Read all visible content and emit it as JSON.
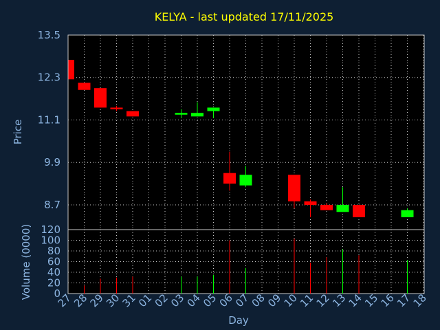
{
  "chart_data": {
    "type": "candlestick",
    "title": "KELYA - last updated 17/11/2025",
    "price_panel": {
      "ylabel": "Price",
      "ylim": [
        8.0,
        13.5
      ],
      "yticks": [
        "13.5",
        "12.3",
        "11.1",
        "9.9",
        "8.7"
      ],
      "ytick_values": [
        13.5,
        12.3,
        11.1,
        9.9,
        8.7
      ]
    },
    "volume_panel": {
      "ylabel": "Volume (0000)",
      "ylim": [
        0,
        120
      ],
      "yticks": [
        "120",
        "100",
        "80",
        "60",
        "40",
        "20",
        "0"
      ],
      "ytick_values": [
        120,
        100,
        80,
        60,
        40,
        20,
        0
      ]
    },
    "xlabel": "Day",
    "xticks": [
      "27",
      "28",
      "29",
      "30",
      "31",
      "01",
      "02",
      "03",
      "04",
      "05",
      "06",
      "07",
      "08",
      "09",
      "10",
      "11",
      "12",
      "13",
      "14",
      "15",
      "16",
      "17",
      "18"
    ],
    "colors": {
      "up": "#00ff00",
      "down": "#ff0000"
    },
    "candles": [
      {
        "i": 0,
        "open": 12.8,
        "high": 12.8,
        "low": 12.25,
        "close": 12.25,
        "volume": 0
      },
      {
        "i": 1,
        "open": 12.15,
        "high": 12.15,
        "low": 11.95,
        "close": 11.95,
        "volume": 15
      },
      {
        "i": 2,
        "open": 12.0,
        "high": 12.0,
        "low": 11.45,
        "close": 11.45,
        "volume": 28
      },
      {
        "i": 3,
        "open": 11.45,
        "high": 11.5,
        "low": 11.35,
        "close": 11.4,
        "volume": 30
      },
      {
        "i": 4,
        "open": 11.35,
        "high": 11.35,
        "low": 11.2,
        "close": 11.2,
        "volume": 32
      },
      {
        "i": 7,
        "open": 11.25,
        "high": 11.4,
        "low": 11.15,
        "close": 11.3,
        "volume": 32
      },
      {
        "i": 8,
        "open": 11.2,
        "high": 11.6,
        "low": 11.2,
        "close": 11.3,
        "volume": 32
      },
      {
        "i": 9,
        "open": 11.35,
        "high": 11.45,
        "low": 11.15,
        "close": 11.45,
        "volume": 35
      },
      {
        "i": 10,
        "open": 9.6,
        "high": 10.2,
        "low": 9.1,
        "close": 9.3,
        "volume": 100
      },
      {
        "i": 11,
        "open": 9.25,
        "high": 9.8,
        "low": 9.2,
        "close": 9.55,
        "volume": 48
      },
      {
        "i": 14,
        "open": 9.55,
        "high": 9.55,
        "low": 8.6,
        "close": 8.8,
        "volume": 103
      },
      {
        "i": 15,
        "open": 8.8,
        "high": 8.85,
        "low": 8.35,
        "close": 8.7,
        "volume": 58
      },
      {
        "i": 16,
        "open": 8.7,
        "high": 8.75,
        "low": 8.55,
        "close": 8.55,
        "volume": 68
      },
      {
        "i": 17,
        "open": 8.5,
        "high": 9.2,
        "low": 8.5,
        "close": 8.7,
        "volume": 83
      },
      {
        "i": 18,
        "open": 8.7,
        "high": 8.7,
        "low": 8.35,
        "close": 8.35,
        "volume": 72
      },
      {
        "i": 21,
        "open": 8.35,
        "high": 8.6,
        "low": 8.35,
        "close": 8.55,
        "volume": 63
      }
    ]
  }
}
